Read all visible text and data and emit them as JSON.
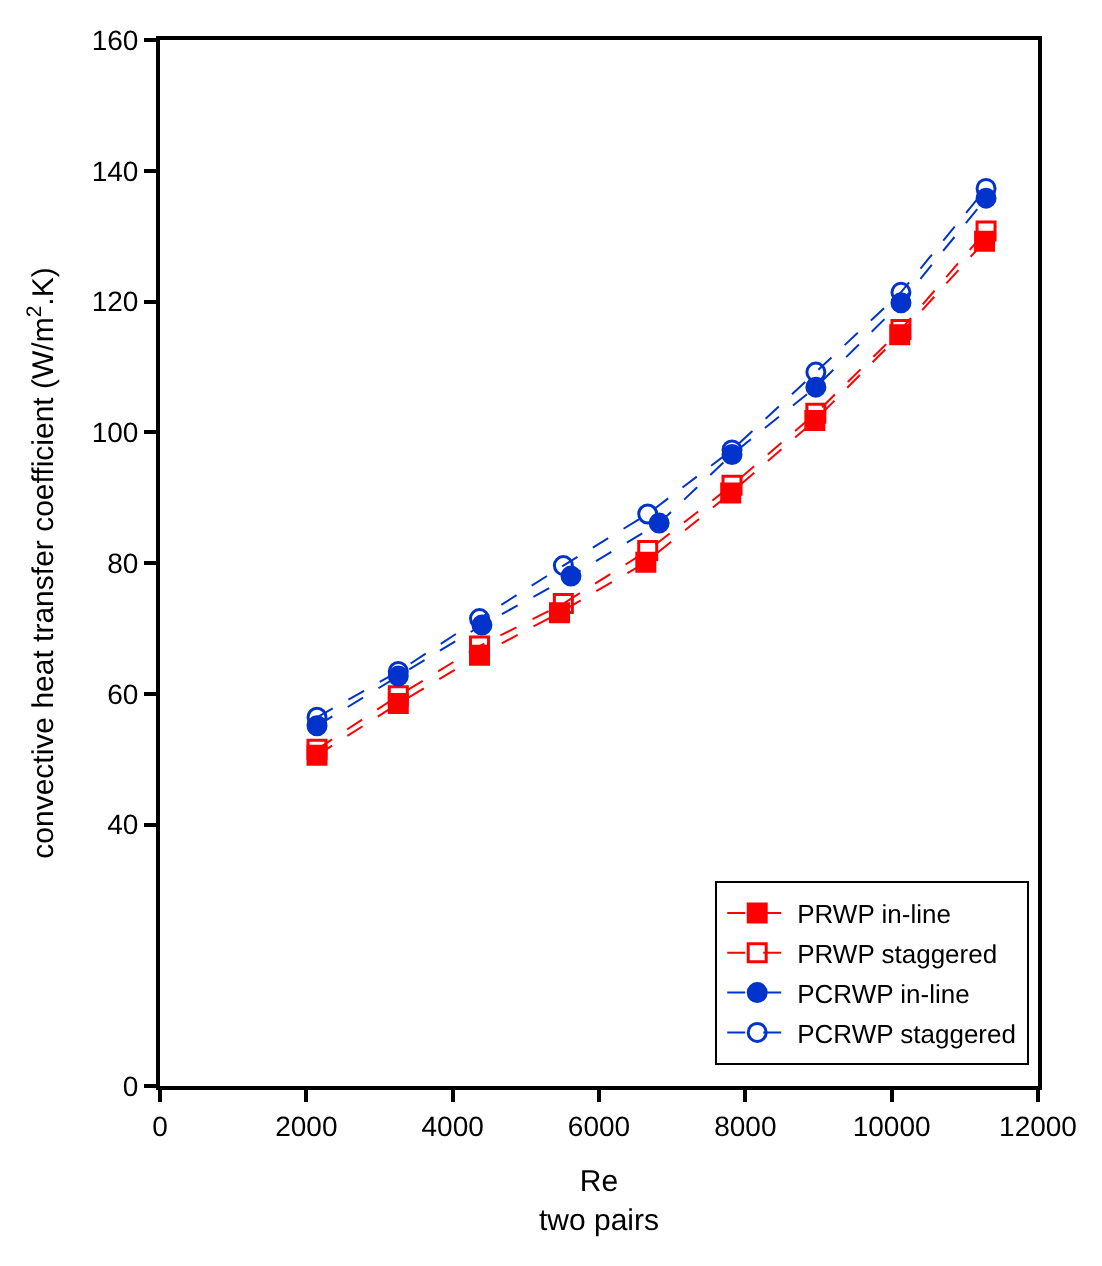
{
  "chart_data": {
    "type": "line",
    "xlabel": "Re\ntwo pairs",
    "ylabel": "convective heat transfer coefficient (W/m$^{2}$.K)",
    "xlim": [
      0,
      12000
    ],
    "xticks": [
      0,
      2000,
      4000,
      6000,
      8000,
      10000,
      12000
    ],
    "ylim": [
      0,
      160
    ],
    "yticks": [
      0,
      40,
      60,
      80,
      100,
      120,
      140,
      160
    ],
    "legend": "bottom right",
    "line_style": "dashed",
    "series": [
      {
        "name": "PRWP in-line",
        "color": "#ff0000",
        "marker": "square",
        "x": [
          2146,
          3257,
          4367,
          5460,
          6640,
          7800,
          8950,
          10110,
          11270
        ],
        "values": [
          50.6,
          58.5,
          65.9,
          72.4,
          80.1,
          90.7,
          101.8,
          114.9,
          129.2
        ]
      },
      {
        "name": "PRWP staggered",
        "color": "#ff0000",
        "marker": "square-open",
        "x": [
          2146,
          3257,
          4367,
          5513,
          6666,
          7818,
          8964,
          10127,
          11290
        ],
        "values": [
          51.5,
          59.7,
          67.3,
          73.8,
          81.9,
          91.9,
          102.9,
          115.7,
          130.8
        ]
      },
      {
        "name": "PCRWP in-line",
        "color": "#0033cc",
        "marker": "circle",
        "x": [
          2146,
          3257,
          4400,
          5617,
          6822,
          7818,
          8964,
          10127,
          11290
        ],
        "values": [
          55.1,
          62.7,
          70.5,
          78.0,
          86.1,
          96.6,
          106.9,
          119.8,
          135.8
        ]
      },
      {
        "name": "PCRWP staggered",
        "color": "#0033cc",
        "marker": "circle-open",
        "x": [
          2146,
          3257,
          4367,
          5513,
          6666,
          7818,
          8964,
          10127,
          11290
        ],
        "values": [
          56.4,
          63.4,
          71.5,
          79.6,
          87.5,
          97.3,
          109.2,
          121.4,
          137.3
        ]
      }
    ]
  }
}
